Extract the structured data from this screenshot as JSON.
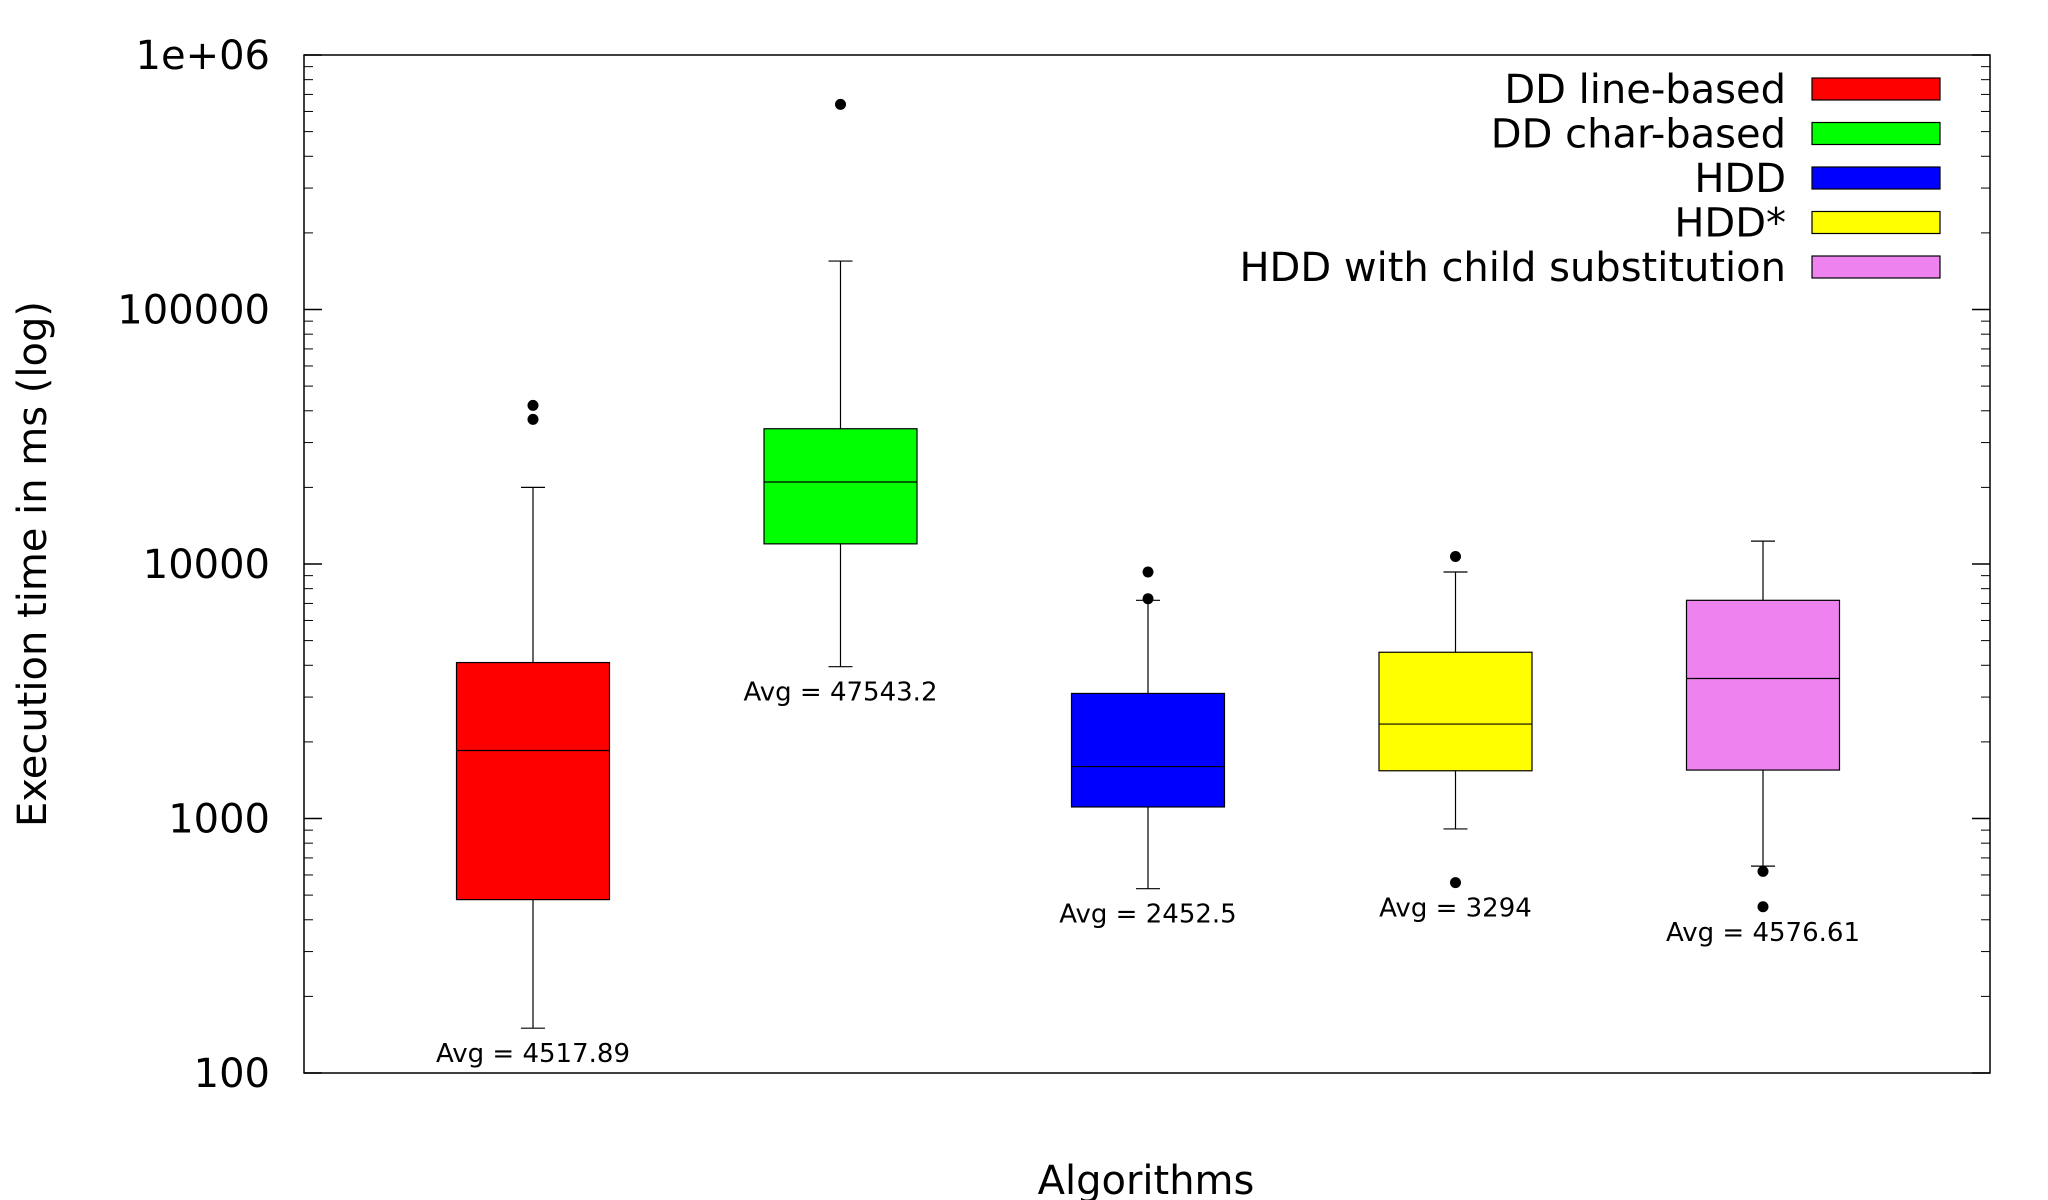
{
  "chart_data": {
    "type": "box",
    "xlabel": "Algorithms",
    "ylabel": "Execution time in ms (log)",
    "yscale": "log",
    "ylim": [
      100,
      1000000
    ],
    "y_ticks": [
      {
        "value": 100,
        "label": "100"
      },
      {
        "value": 1000,
        "label": "1000"
      },
      {
        "value": 10000,
        "label": "10000"
      },
      {
        "value": 100000,
        "label": "100000"
      },
      {
        "value": 1000000,
        "label": "1e+06"
      }
    ],
    "grid": false,
    "legend_position": "top-right",
    "series": [
      {
        "name": "DD line-based",
        "color": "#ff0000",
        "whisker_low": 150,
        "q1": 480,
        "median": 1850,
        "q3": 4100,
        "whisker_high": 20000,
        "outliers": [
          42000,
          37000
        ],
        "avg_label": "Avg = 4517.89"
      },
      {
        "name": "DD char-based",
        "color": "#00ff00",
        "whisker_low": 3950,
        "q1": 12000,
        "median": 21000,
        "q3": 34000,
        "whisker_high": 155000,
        "outliers": [
          640000
        ],
        "avg_label": "Avg = 47543.2"
      },
      {
        "name": "HDD",
        "color": "#0000ff",
        "whisker_low": 530,
        "q1": 1110,
        "median": 1600,
        "q3": 3100,
        "whisker_high": 7200,
        "outliers": [
          9300,
          7300
        ],
        "avg_label": "Avg = 2452.5"
      },
      {
        "name": "HDD*",
        "color": "#ffff00",
        "whisker_low": 910,
        "q1": 1540,
        "median": 2350,
        "q3": 4500,
        "whisker_high": 9300,
        "outliers": [
          10700,
          560
        ],
        "avg_label": "Avg = 3294"
      },
      {
        "name": "HDD with child substitution",
        "color": "#ee82ee",
        "whisker_low": 650,
        "q1": 1550,
        "median": 3550,
        "q3": 7200,
        "whisker_high": 12300,
        "outliers": [
          620,
          450
        ],
        "avg_label": "Avg = 4576.61"
      }
    ]
  }
}
